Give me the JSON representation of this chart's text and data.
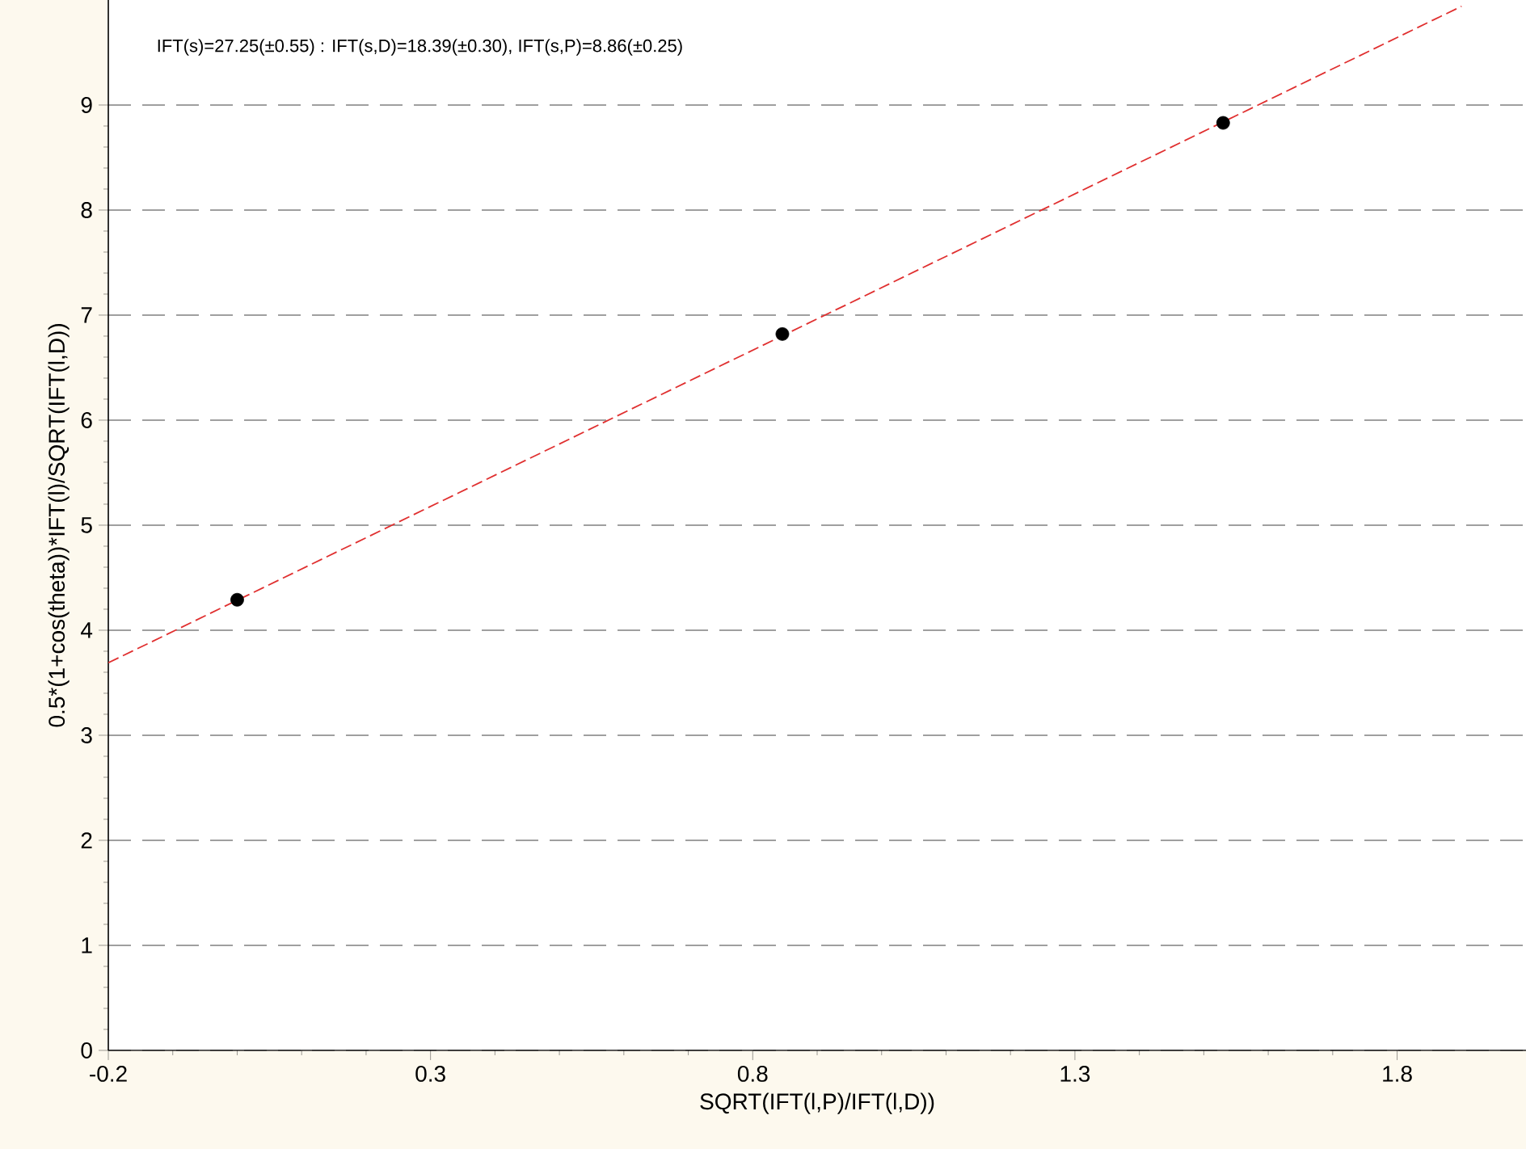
{
  "chart_data": {
    "type": "scatter",
    "xlabel": "SQRT(IFT(l,P)/IFT(l,D))",
    "ylabel": "0.5*(1+cos(theta))*IFT(l)/SQRT(IFT(l,D))",
    "annotations": [
      "IFT(s)=27.25(±0.55) : IFT(s,D)=18.39(±0.30), IFT(s,P)=8.86(±0.25)"
    ],
    "xlim": [
      -0.2,
      2.0
    ],
    "ylim": [
      0,
      10
    ],
    "xticks": [
      -0.2,
      0.3,
      0.8,
      1.3,
      1.8
    ],
    "yticks": [
      0,
      1,
      2,
      3,
      4,
      5,
      6,
      7,
      8,
      9
    ],
    "grid": "y",
    "series": [
      {
        "type": "scatter",
        "marker": "circle",
        "color": "#000000",
        "x": [
          0.0,
          0.846,
          1.53
        ],
        "values": [
          4.29,
          6.82,
          8.83
        ]
      },
      {
        "type": "line",
        "color": "#e03030",
        "line_style": "dashed",
        "marker": "none",
        "x": [
          -0.2,
          1.9
        ],
        "values": [
          3.69,
          9.94
        ]
      }
    ]
  }
}
